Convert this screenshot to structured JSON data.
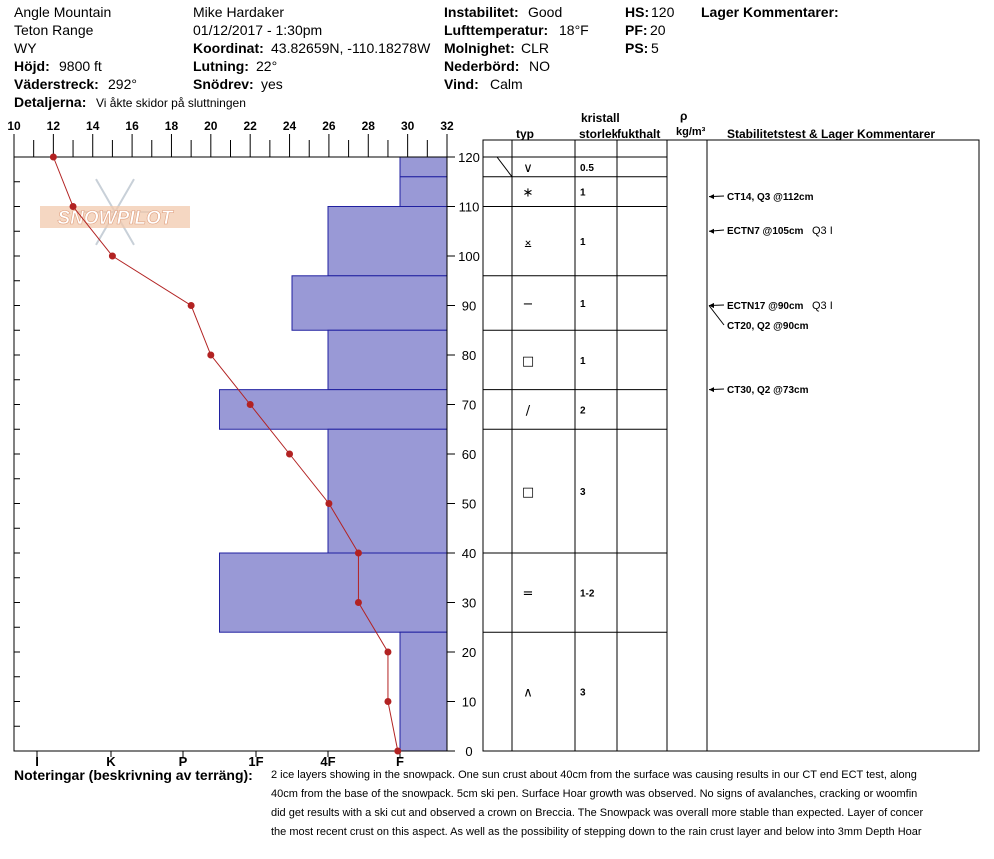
{
  "header": {
    "location": "Angle Mountain",
    "range": "Teton Range",
    "state": "WY",
    "elevation_label": "Höjd:",
    "elevation": "9800 ft",
    "aspect_label": "Väderstreck:",
    "aspect": "292°",
    "details_label": "Detaljerna:",
    "details": "Vi åkte skidor på sluttningen",
    "observer": "Mike Hardaker",
    "datetime": "01/12/2017 - 1:30pm",
    "coord_label": "Koordinat:",
    "coord": "43.82659N, -110.18278W",
    "slope_label": "Lutning:",
    "slope": "22°",
    "drift_label": "Snödrev:",
    "drift": "yes",
    "stability_label": "Instabilitet:",
    "stability": "Good",
    "airtemp_label": "Lufttemperatur:",
    "airtemp": "18°F",
    "sky_label": "Molnighet:",
    "sky": "CLR",
    "precip_label": "Nederbörd:",
    "precip": "NO",
    "wind_label": "Vind:",
    "wind": "Calm",
    "hs_label": "HS:",
    "hs": "120",
    "pf_label": "PF:",
    "pf": "20",
    "ps_label": "PS:",
    "ps": "5",
    "layer_comments_label": "Lager Kommentarer:"
  },
  "table_headers": {
    "crystal": "kristall",
    "type": "typ",
    "size": "storlek",
    "moisture": "fukthalt",
    "rho": "ρ",
    "density_unit": "kg/m³",
    "stability": "Stabilitetstest & Lager Kommentarer"
  },
  "watermark": "SNOWPILOT",
  "notes": {
    "label": "Noteringar (beskrivning av terräng):",
    "lines": [
      "2 ice layers showing in the snowpack.  One sun crust about 40cm from the surface was causing results in our CT end ECT test, along",
      "40cm from the base of the snowpack. 5cm ski pen.  Surface Hoar growth was observed.  No signs of avalanches, cracking or woomfin",
      "did get results with a ski cut and observed a crown on Breccia. The Snowpack was overall more stable than expected.  Layer of concer",
      "the most recent crust on this aspect. As well as the possibility of stepping down to the rain crust layer and below into 3mm Depth Hoar"
    ]
  },
  "chart_data": {
    "type": "line",
    "temp_axis": {
      "range": [
        10,
        32
      ],
      "ticks": [
        "10",
        "12",
        "14",
        "16",
        "18",
        "20",
        "22",
        "24",
        "26",
        "28",
        "30",
        "32"
      ]
    },
    "height_axis": {
      "range": [
        0,
        120
      ],
      "ticks": [
        "0",
        "10",
        "20",
        "30",
        "40",
        "50",
        "60",
        "70",
        "80",
        "90",
        "100",
        "110",
        "120"
      ]
    },
    "hardness_axis": {
      "labels": [
        "I",
        "K",
        "P",
        "1F",
        "4F",
        "F"
      ]
    },
    "temperature_profile": {
      "x_temp_F": [
        12,
        13,
        15,
        19,
        20,
        22,
        24,
        26,
        27.5,
        27.5,
        29,
        29,
        29.5
      ],
      "y_height_cm": [
        120,
        110,
        100,
        90,
        80,
        70,
        60,
        50,
        40,
        30,
        20,
        10,
        0
      ],
      "color": "#b22222"
    },
    "hardness_profile": {
      "color": "#9999d6",
      "layers": [
        {
          "top": 120,
          "bottom": 116,
          "hardness": "F"
        },
        {
          "top": 116,
          "bottom": 110,
          "hardness": "F"
        },
        {
          "top": 110,
          "bottom": 96,
          "hardness": "4F"
        },
        {
          "top": 96,
          "bottom": 85,
          "hardness": "1F-4F"
        },
        {
          "top": 85,
          "bottom": 73,
          "hardness": "4F"
        },
        {
          "top": 73,
          "bottom": 65,
          "hardness": "P-1F"
        },
        {
          "top": 65,
          "bottom": 40,
          "hardness": "4F"
        },
        {
          "top": 40,
          "bottom": 24,
          "hardness": "P-1F"
        },
        {
          "top": 24,
          "bottom": 0,
          "hardness": "F"
        }
      ]
    },
    "crystal_layers": [
      {
        "top": 120,
        "bottom": 116,
        "symbol": "∨",
        "size": "0.5"
      },
      {
        "top": 116,
        "bottom": 110,
        "symbol": "∗",
        "size": "1"
      },
      {
        "top": 110,
        "bottom": 96,
        "symbol": "⨱",
        "size": "1"
      },
      {
        "top": 96,
        "bottom": 85,
        "symbol": "−",
        "size": "1"
      },
      {
        "top": 85,
        "bottom": 73,
        "symbol": "□",
        "size": "1"
      },
      {
        "top": 73,
        "bottom": 65,
        "symbol": "∕",
        "size": "2"
      },
      {
        "top": 65,
        "bottom": 40,
        "symbol": "□",
        "size": "3"
      },
      {
        "top": 40,
        "bottom": 24,
        "symbol": "=",
        "size": "1-2"
      },
      {
        "top": 24,
        "bottom": 0,
        "symbol": "∧",
        "size": "3"
      }
    ],
    "stability_tests": [
      {
        "depth": 112,
        "text": "CT14, Q3 @112cm",
        "extra": ""
      },
      {
        "depth": 105,
        "text": "ECTN7 @105cm",
        "extra": "Q3 I"
      },
      {
        "depth": 90,
        "text": "ECTN17 @90cm",
        "extra": "Q3 I"
      },
      {
        "depth": 90,
        "text": "CT20, Q2 @90cm",
        "extra": ""
      },
      {
        "depth": 73,
        "text": "CT30, Q2 @73cm",
        "extra": ""
      }
    ]
  }
}
